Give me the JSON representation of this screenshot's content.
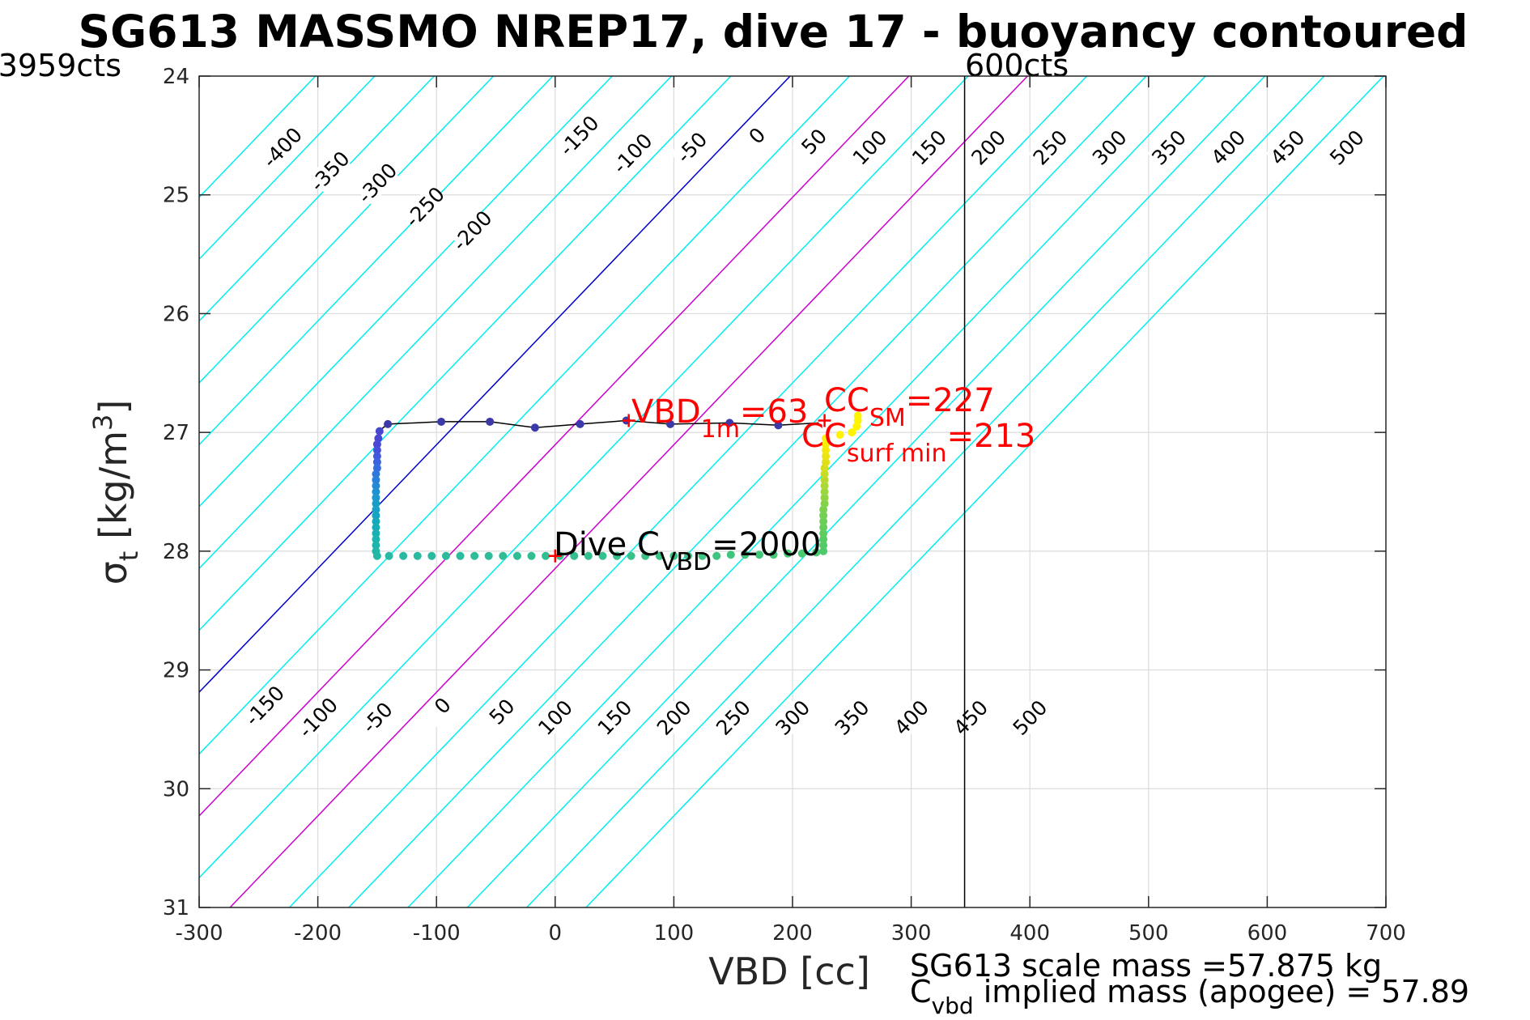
{
  "figure": {
    "title": "SG613 MASSMO NREP17, dive 17 - buoyancy contoured",
    "left_counts_label": "3959cts",
    "right_counts_label": "600cts",
    "xlabel": "VBD [cc]",
    "ylabel": "σt [kg/m3]",
    "ylabel_parts": {
      "sigma": "σ",
      "sub": "t",
      "main": " [kg/m",
      "sup": "3",
      "close": "]"
    },
    "footer_line1": "SG613 scale mass =57.875 kg",
    "footer_line2_parts": {
      "c": "C",
      "sub": "vbd",
      "rest": " implied mass (apogee) = 57.89"
    }
  },
  "annotations": {
    "vbd_1m": {
      "main": "VBD",
      "sub": "1m",
      "value": "=63",
      "color": "#ff0000"
    },
    "cc_sm": {
      "main": "CC",
      "sub": "SM",
      "value": "=227",
      "color": "#ff0000"
    },
    "cc_surf_min": {
      "main": "CC",
      "sub": "surf min",
      "value": "=213",
      "color": "#ff0000"
    },
    "dive_cvbd": {
      "main": "Dive C",
      "sub": "VBD",
      "value": "=2000",
      "color": "#000000"
    }
  },
  "chart_data": {
    "type": "line",
    "xlim": [
      -300,
      700
    ],
    "ylim": [
      24,
      31
    ],
    "y_reversed": true,
    "x_ticks": [
      -300,
      -200,
      -100,
      0,
      100,
      200,
      300,
      400,
      500,
      600,
      700
    ],
    "x_tick_labels": [
      "-300",
      "-200",
      "-100",
      "0",
      "100",
      "200",
      "300",
      "400",
      "500",
      "600",
      "700"
    ],
    "y_ticks": [
      24,
      25,
      26,
      27,
      28,
      29,
      30,
      31
    ],
    "y_tick_labels": [
      "24",
      "25",
      "26",
      "27",
      "28",
      "29",
      "30",
      "31"
    ],
    "grid": true,
    "contours": {
      "slope_vbd_per_sigma": 96,
      "zero_line_vbd_at_sigma_24": 198,
      "values": [
        -400,
        -350,
        -300,
        -250,
        -200,
        -150,
        -100,
        -50,
        0,
        50,
        100,
        150,
        200,
        250,
        300,
        350,
        400,
        450,
        500
      ],
      "colors": {
        "default": "#00eeee",
        "zero": "#0000cc",
        "highlight": "#cc00cc"
      },
      "highlight_values": [
        100,
        200
      ],
      "upper_labels": [
        {
          "text": "-400",
          "x": -230,
          "y": 24.6
        },
        {
          "text": "-350",
          "x": -190,
          "y": 24.8
        },
        {
          "text": "-300",
          "x": -150,
          "y": 24.9
        },
        {
          "text": "-250",
          "x": -110,
          "y": 25.1
        },
        {
          "text": "-200",
          "x": -70,
          "y": 25.3
        },
        {
          "text": "-150",
          "x": 20,
          "y": 24.5
        },
        {
          "text": "-100",
          "x": 65,
          "y": 24.65
        },
        {
          "text": "-50",
          "x": 115,
          "y": 24.6
        },
        {
          "text": "0",
          "x": 170,
          "y": 24.5
        },
        {
          "text": "50",
          "x": 218,
          "y": 24.55
        },
        {
          "text": "100",
          "x": 265,
          "y": 24.6
        },
        {
          "text": "150",
          "x": 315,
          "y": 24.6
        },
        {
          "text": "200",
          "x": 365,
          "y": 24.6
        },
        {
          "text": "250",
          "x": 417,
          "y": 24.6
        },
        {
          "text": "300",
          "x": 467,
          "y": 24.6
        },
        {
          "text": "350",
          "x": 517,
          "y": 24.6
        },
        {
          "text": "400",
          "x": 567,
          "y": 24.6
        },
        {
          "text": "450",
          "x": 617,
          "y": 24.6
        },
        {
          "text": "500",
          "x": 667,
          "y": 24.6
        }
      ],
      "lower_labels": [
        {
          "text": "-150",
          "x": -245,
          "y": 29.3
        },
        {
          "text": "-100",
          "x": -200,
          "y": 29.4
        },
        {
          "text": "-50",
          "x": -150,
          "y": 29.4
        },
        {
          "text": "0",
          "x": -95,
          "y": 29.3
        },
        {
          "text": "50",
          "x": -45,
          "y": 29.35
        },
        {
          "text": "100",
          "x": 0,
          "y": 29.4
        },
        {
          "text": "150",
          "x": 50,
          "y": 29.4
        },
        {
          "text": "200",
          "x": 100,
          "y": 29.4
        },
        {
          "text": "250",
          "x": 150,
          "y": 29.4
        },
        {
          "text": "300",
          "x": 200,
          "y": 29.4
        },
        {
          "text": "350",
          "x": 250,
          "y": 29.4
        },
        {
          "text": "400",
          "x": 300,
          "y": 29.4
        },
        {
          "text": "450",
          "x": 350,
          "y": 29.4
        },
        {
          "text": "500",
          "x": 400,
          "y": 29.4
        }
      ]
    },
    "vertical_line": {
      "x": 345,
      "color": "#000000"
    },
    "trajectory": {
      "color": "#000000",
      "x": [
        -150,
        -141,
        -96,
        -55,
        -17,
        21,
        60,
        97,
        147,
        188,
        222
      ],
      "y": [
        27.0,
        26.93,
        26.91,
        26.91,
        26.96,
        26.93,
        26.9,
        26.93,
        26.92,
        26.94,
        26.92
      ]
    },
    "points": [
      {
        "x": -141,
        "y": 26.93,
        "color": "#3b3aa8"
      },
      {
        "x": -96,
        "y": 26.91,
        "color": "#3b3aa8"
      },
      {
        "x": -55,
        "y": 26.91,
        "color": "#3b3aa8"
      },
      {
        "x": -17,
        "y": 26.96,
        "color": "#3b3aa8"
      },
      {
        "x": 21,
        "y": 26.93,
        "color": "#3b3aa8"
      },
      {
        "x": 60,
        "y": 26.9,
        "color": "#3b3aa8"
      },
      {
        "x": 97,
        "y": 26.93,
        "color": "#3b3aa8"
      },
      {
        "x": 147,
        "y": 26.92,
        "color": "#3b3aa8"
      },
      {
        "x": 188,
        "y": 26.94,
        "color": "#3b3aa8"
      },
      {
        "x": -148,
        "y": 26.99,
        "color": "#4646cf"
      },
      {
        "x": -149,
        "y": 27.05,
        "color": "#4a45d4"
      },
      {
        "x": -150,
        "y": 27.1,
        "color": "#4a48d6"
      },
      {
        "x": -150,
        "y": 27.15,
        "color": "#4650da"
      },
      {
        "x": -150,
        "y": 27.2,
        "color": "#4258dc"
      },
      {
        "x": -150,
        "y": 27.25,
        "color": "#3c62de"
      },
      {
        "x": -150,
        "y": 27.3,
        "color": "#366cde"
      },
      {
        "x": -151,
        "y": 27.35,
        "color": "#3076dc"
      },
      {
        "x": -151,
        "y": 27.4,
        "color": "#2a80d8"
      },
      {
        "x": -151,
        "y": 27.45,
        "color": "#2488d4"
      },
      {
        "x": -151,
        "y": 27.5,
        "color": "#1f90d0"
      },
      {
        "x": -151,
        "y": 27.55,
        "color": "#1c96cc"
      },
      {
        "x": -151,
        "y": 27.6,
        "color": "#1a9cc8"
      },
      {
        "x": -151,
        "y": 27.65,
        "color": "#19a0c4"
      },
      {
        "x": -151,
        "y": 27.7,
        "color": "#18a4c0"
      },
      {
        "x": -151,
        "y": 27.75,
        "color": "#18a8bc"
      },
      {
        "x": -151,
        "y": 27.8,
        "color": "#18acb8"
      },
      {
        "x": -151,
        "y": 27.85,
        "color": "#1aafb4"
      },
      {
        "x": -151,
        "y": 27.9,
        "color": "#1cb2b0"
      },
      {
        "x": -151,
        "y": 27.95,
        "color": "#1eb4ac"
      },
      {
        "x": -151,
        "y": 28.0,
        "color": "#22b6a8"
      },
      {
        "x": -150,
        "y": 28.04,
        "color": "#26b8a4"
      },
      {
        "x": -140,
        "y": 28.04,
        "color": "#28b9a2"
      },
      {
        "x": -128,
        "y": 28.04,
        "color": "#28b9a2"
      },
      {
        "x": -116,
        "y": 28.04,
        "color": "#2aba9f"
      },
      {
        "x": -104,
        "y": 28.04,
        "color": "#2aba9f"
      },
      {
        "x": -92,
        "y": 28.04,
        "color": "#2cbb9c"
      },
      {
        "x": -80,
        "y": 28.04,
        "color": "#2cbb9c"
      },
      {
        "x": -68,
        "y": 28.04,
        "color": "#2ebc99"
      },
      {
        "x": -56,
        "y": 28.04,
        "color": "#2ebc99"
      },
      {
        "x": -44,
        "y": 28.04,
        "color": "#30bd96"
      },
      {
        "x": -32,
        "y": 28.04,
        "color": "#30bd96"
      },
      {
        "x": -20,
        "y": 28.04,
        "color": "#32be93"
      },
      {
        "x": -8,
        "y": 28.04,
        "color": "#32be93"
      },
      {
        "x": 4,
        "y": 28.04,
        "color": "#34bf90"
      },
      {
        "x": 16,
        "y": 28.04,
        "color": "#34bf90"
      },
      {
        "x": 28,
        "y": 28.04,
        "color": "#36c08d"
      },
      {
        "x": 40,
        "y": 28.04,
        "color": "#36c08d"
      },
      {
        "x": 52,
        "y": 28.04,
        "color": "#38c18a"
      },
      {
        "x": 64,
        "y": 28.04,
        "color": "#38c18a"
      },
      {
        "x": 76,
        "y": 28.04,
        "color": "#3ac287"
      },
      {
        "x": 88,
        "y": 28.04,
        "color": "#3ac287"
      },
      {
        "x": 100,
        "y": 28.04,
        "color": "#3cc384"
      },
      {
        "x": 112,
        "y": 28.04,
        "color": "#3cc384"
      },
      {
        "x": 124,
        "y": 28.04,
        "color": "#3ec481"
      },
      {
        "x": 136,
        "y": 28.04,
        "color": "#3ec481"
      },
      {
        "x": 148,
        "y": 28.03,
        "color": "#40c57e"
      },
      {
        "x": 160,
        "y": 28.03,
        "color": "#40c57e"
      },
      {
        "x": 172,
        "y": 28.03,
        "color": "#42c67b"
      },
      {
        "x": 184,
        "y": 28.03,
        "color": "#44c778"
      },
      {
        "x": 196,
        "y": 28.02,
        "color": "#46c875"
      },
      {
        "x": 208,
        "y": 28.02,
        "color": "#48c972"
      },
      {
        "x": 220,
        "y": 28.01,
        "color": "#4aca6f"
      },
      {
        "x": 226,
        "y": 28.0,
        "color": "#4cca6c"
      },
      {
        "x": 226,
        "y": 27.95,
        "color": "#52cb68"
      },
      {
        "x": 226,
        "y": 27.9,
        "color": "#58cc64"
      },
      {
        "x": 226,
        "y": 27.85,
        "color": "#5ecd60"
      },
      {
        "x": 226,
        "y": 27.8,
        "color": "#64ce5c"
      },
      {
        "x": 226,
        "y": 27.75,
        "color": "#6acf58"
      },
      {
        "x": 226,
        "y": 27.7,
        "color": "#72d054"
      },
      {
        "x": 226,
        "y": 27.65,
        "color": "#7ad150"
      },
      {
        "x": 227,
        "y": 27.6,
        "color": "#84d24a"
      },
      {
        "x": 227,
        "y": 27.55,
        "color": "#90d444"
      },
      {
        "x": 227,
        "y": 27.5,
        "color": "#9cd63e"
      },
      {
        "x": 227,
        "y": 27.45,
        "color": "#aad838"
      },
      {
        "x": 227,
        "y": 27.4,
        "color": "#b8da30"
      },
      {
        "x": 227,
        "y": 27.35,
        "color": "#c6dc28"
      },
      {
        "x": 227,
        "y": 27.3,
        "color": "#d4de20"
      },
      {
        "x": 228,
        "y": 27.25,
        "color": "#e0e018"
      },
      {
        "x": 228,
        "y": 27.2,
        "color": "#eae412"
      },
      {
        "x": 228,
        "y": 27.15,
        "color": "#f2e80c"
      },
      {
        "x": 228,
        "y": 27.1,
        "color": "#f8ec08"
      },
      {
        "x": 228,
        "y": 27.05,
        "color": "#fcf004"
      },
      {
        "x": 240,
        "y": 27.02,
        "color": "#fef400"
      },
      {
        "x": 250,
        "y": 27.0,
        "color": "#fef400"
      },
      {
        "x": 254,
        "y": 26.95,
        "color": "#fef400"
      },
      {
        "x": 255,
        "y": 26.9,
        "color": "#fef400"
      },
      {
        "x": 255,
        "y": 26.86,
        "color": "#fef400"
      }
    ],
    "markers": [
      {
        "x": 62,
        "y": 26.9,
        "color": "#ff0000"
      },
      {
        "x": 227,
        "y": 26.9,
        "color": "#ff0000"
      },
      {
        "x": 0,
        "y": 28.04,
        "color": "#ff0000"
      }
    ]
  }
}
